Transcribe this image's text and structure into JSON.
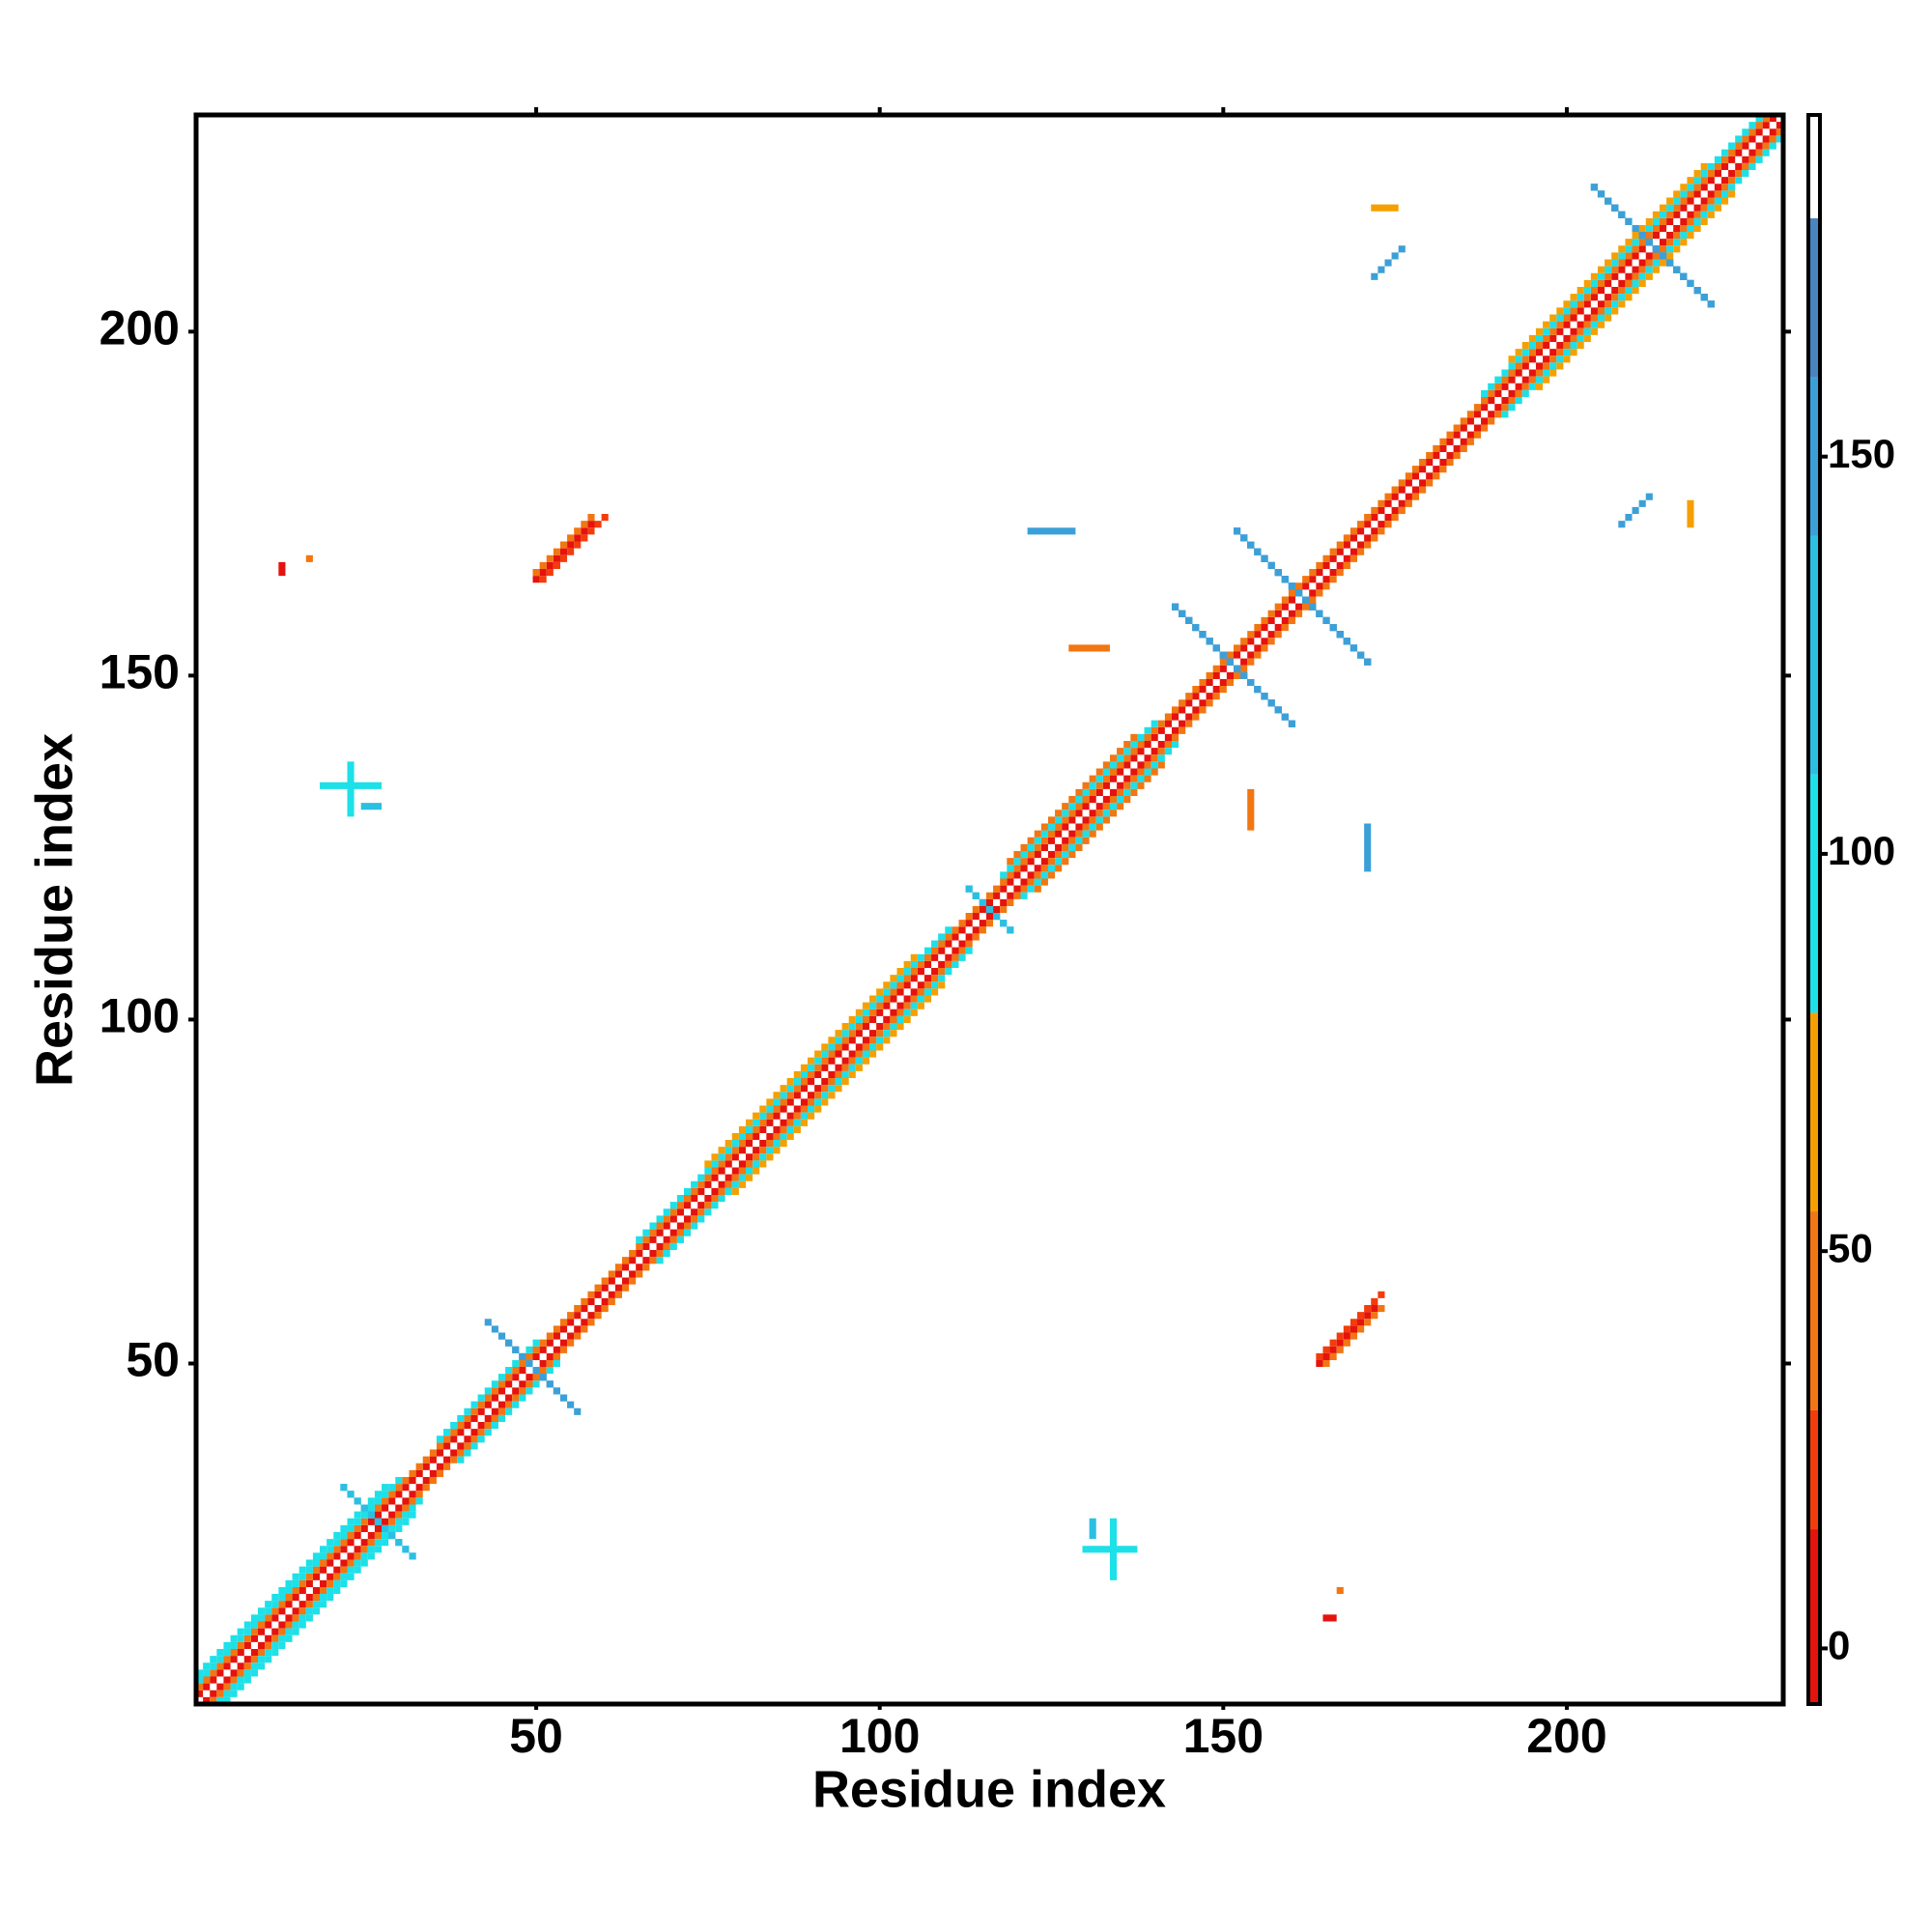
{
  "chart_data": {
    "type": "heatmap",
    "x_label": "Residue index",
    "y_label": "Residue index",
    "xlim": [
      0.5,
      231.5
    ],
    "ylim": [
      0.5,
      231.5
    ],
    "xticks": [
      50,
      100,
      150,
      200
    ],
    "yticks": [
      50,
      100,
      150,
      200
    ],
    "symmetric": true,
    "clim": [
      -7,
      193
    ],
    "cticks": [
      0,
      50,
      100,
      150
    ],
    "colorscale": [
      {
        "from": -7,
        "to": 15,
        "color": "#e5120e"
      },
      {
        "from": 15,
        "to": 30,
        "color": "#f23c0c"
      },
      {
        "from": 30,
        "to": 55,
        "color": "#f27612"
      },
      {
        "from": 55,
        "to": 80,
        "color": "#f5a000"
      },
      {
        "from": 80,
        "to": 110,
        "color": "#1ee0e8"
      },
      {
        "from": 110,
        "to": 140,
        "color": "#2cbfe2"
      },
      {
        "from": 140,
        "to": 160,
        "color": "#3ca0d8"
      },
      {
        "from": 160,
        "to": 180,
        "color": "#4a84c0"
      },
      {
        "from": 180,
        "to": 193,
        "color": "#ffffff"
      }
    ],
    "runs": [
      {
        "x": [
          1,
          230
        ],
        "y": [
          2,
          231
        ],
        "value": 8
      },
      {
        "x": [
          1,
          229
        ],
        "y": [
          3,
          231
        ],
        "value": 45
      },
      {
        "x": [
          1,
          30
        ],
        "y": [
          4,
          33
        ],
        "value": 95
      },
      {
        "x": [
          1,
          28
        ],
        "y": [
          5,
          32
        ],
        "value": 90
      },
      {
        "x": [
          36,
          50
        ],
        "y": [
          39,
          53
        ],
        "value": 95
      },
      {
        "x": [
          65,
          110
        ],
        "y": [
          68,
          113
        ],
        "value": 95
      },
      {
        "x": [
          118,
          140
        ],
        "y": [
          121,
          143
        ],
        "value": 100
      },
      {
        "x": [
          119,
          137
        ],
        "y": [
          123,
          141
        ],
        "value": 45
      },
      {
        "x": [
          188,
          228
        ],
        "y": [
          191,
          231
        ],
        "value": 95
      },
      {
        "x": [
          192,
          220
        ],
        "y": [
          196,
          224
        ],
        "value": 55
      },
      {
        "x": [
          75,
          105
        ],
        "y": [
          79,
          109
        ],
        "value": 60
      },
      {
        "x": [
          143,
          160
        ],
        "y": [
          160,
          143
        ],
        "value": 165
      },
      {
        "x": [
          144,
          160
        ],
        "y": [
          159,
          143
        ],
        "value": 150
      },
      {
        "x": [
          152,
          171
        ],
        "y": [
          171,
          152
        ],
        "value": 165
      },
      {
        "x": [
          153,
          171
        ],
        "y": [
          170,
          152
        ],
        "value": 150
      },
      {
        "x": [
          204,
          221
        ],
        "y": [
          221,
          204
        ],
        "value": 155
      },
      {
        "x": [
          205,
          221
        ],
        "y": [
          220,
          204
        ],
        "value": 140
      },
      {
        "x": [
          45,
          56
        ],
        "y": [
          54,
          43
        ],
        "value": 155
      },
      {
        "x": [
          22,
          32
        ],
        "y": [
          32,
          22
        ],
        "value": 110
      },
      {
        "x": [
          113,
          119
        ],
        "y": [
          119,
          113
        ],
        "value": 120
      },
      {
        "x": [
          164,
          172
        ],
        "y": [
          50,
          58
        ],
        "value": 10
      },
      {
        "x": [
          165,
          173
        ],
        "y": [
          50,
          58
        ],
        "value": 40
      },
      {
        "x": [
          164,
          173
        ],
        "y": [
          51,
          60
        ],
        "value": 25
      },
      {
        "x": [
          130,
          137
        ],
        "y": [
          23,
          23
        ],
        "value": 100
      },
      {
        "x": [
          134,
          134
        ],
        "y": [
          19,
          27
        ],
        "value": 95
      },
      {
        "x": [
          131,
          131
        ],
        "y": [
          25,
          27
        ],
        "value": 115
      },
      {
        "x": [
          165,
          166
        ],
        "y": [
          13,
          13
        ],
        "value": 10
      },
      {
        "x": [
          167,
          167
        ],
        "y": [
          17,
          17
        ],
        "value": 40
      },
      {
        "x": [
          171,
          171
        ],
        "y": [
          122,
          128
        ],
        "value": 150
      },
      {
        "x": [
          154,
          154
        ],
        "y": [
          128,
          133
        ],
        "value": 50
      },
      {
        "x": [
          172,
          175
        ],
        "y": [
          218,
          218
        ],
        "value": 55
      },
      {
        "x": [
          172,
          173
        ],
        "y": [
          208,
          212
        ],
        "value": 150
      }
    ]
  }
}
